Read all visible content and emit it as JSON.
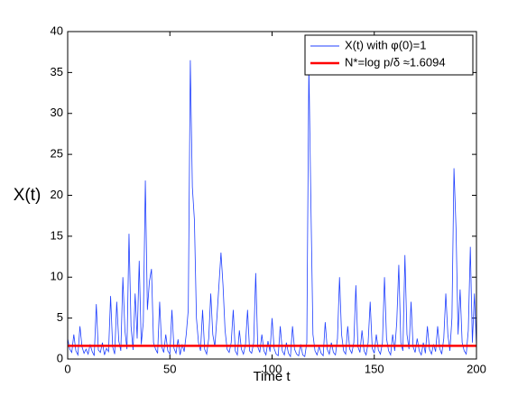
{
  "chart_data": {
    "type": "line",
    "xlabel": "Time t",
    "ylabel": "X(t)",
    "xlim": [
      0,
      200
    ],
    "xticks": [
      0,
      50,
      100,
      150,
      200
    ],
    "ylim": [
      0,
      40
    ],
    "yticks": [
      0,
      5,
      10,
      15,
      20,
      25,
      30,
      35,
      40
    ],
    "legend": "upper right",
    "x": [
      0,
      1,
      2,
      3,
      4,
      5,
      6,
      7,
      8,
      9,
      10,
      11,
      12,
      13,
      14,
      15,
      16,
      17,
      18,
      19,
      20,
      21,
      22,
      23,
      24,
      25,
      26,
      27,
      28,
      29,
      30,
      31,
      32,
      33,
      34,
      35,
      36,
      37,
      38,
      39,
      40,
      41,
      42,
      43,
      44,
      45,
      46,
      47,
      48,
      49,
      50,
      51,
      52,
      53,
      54,
      55,
      56,
      57,
      58,
      59,
      60,
      61,
      62,
      63,
      64,
      65,
      66,
      67,
      68,
      69,
      70,
      71,
      72,
      73,
      74,
      75,
      76,
      77,
      78,
      79,
      80,
      81,
      82,
      83,
      84,
      85,
      86,
      87,
      88,
      89,
      90,
      91,
      92,
      93,
      94,
      95,
      96,
      97,
      98,
      99,
      100,
      101,
      102,
      103,
      104,
      105,
      106,
      107,
      108,
      109,
      110,
      111,
      112,
      113,
      114,
      115,
      116,
      117,
      118,
      119,
      120,
      121,
      122,
      123,
      124,
      125,
      126,
      127,
      128,
      129,
      130,
      131,
      132,
      133,
      134,
      135,
      136,
      137,
      138,
      139,
      140,
      141,
      142,
      143,
      144,
      145,
      146,
      147,
      148,
      149,
      150,
      151,
      152,
      153,
      154,
      155,
      156,
      157,
      158,
      159,
      160,
      161,
      162,
      163,
      164,
      165,
      166,
      167,
      168,
      169,
      170,
      171,
      172,
      173,
      174,
      175,
      176,
      177,
      178,
      179,
      180,
      181,
      182,
      183,
      184,
      185,
      186,
      187,
      188,
      189,
      190,
      191,
      192,
      193,
      194,
      195,
      196,
      197,
      198,
      199,
      200
    ],
    "series": [
      {
        "name": "X(t) with φ(0)=1",
        "color": "#1f3fff",
        "values": [
          2.5,
          1.2,
          0.8,
          3.0,
          1.0,
          0.5,
          4.0,
          1.5,
          0.7,
          1.2,
          0.6,
          1.8,
          0.9,
          0.4,
          6.7,
          1.1,
          0.8,
          2.0,
          0.5,
          1.3,
          0.9,
          7.7,
          1.5,
          0.6,
          7.0,
          2.2,
          1.0,
          10.0,
          3.5,
          1.2,
          15.3,
          4.0,
          1.1,
          8.0,
          2.5,
          12.0,
          1.8,
          4.5,
          21.8,
          6.0,
          9.5,
          11.0,
          2.0,
          1.2,
          0.7,
          7.0,
          1.5,
          0.8,
          3.0,
          1.0,
          0.6,
          6.0,
          1.3,
          0.7,
          2.4,
          0.5,
          1.8,
          0.9,
          3.0,
          6.0,
          36.5,
          21.0,
          17.0,
          5.0,
          2.0,
          1.0,
          6.0,
          1.2,
          0.6,
          2.5,
          8.0,
          3.0,
          1.5,
          5.0,
          9.0,
          13.0,
          9.0,
          3.5,
          1.2,
          0.8,
          2.0,
          6.0,
          1.0,
          0.5,
          3.5,
          1.2,
          0.6,
          1.8,
          6.0,
          1.0,
          0.7,
          2.0,
          10.5,
          1.5,
          0.8,
          3.0,
          1.0,
          0.5,
          2.2,
          0.9,
          5.0,
          1.3,
          0.6,
          0.4,
          4.0,
          1.0,
          0.5,
          2.0,
          0.7,
          0.3,
          4.0,
          1.2,
          0.6,
          0.4,
          1.8,
          0.5,
          0.3,
          2.0,
          36.0,
          19.0,
          3.0,
          1.0,
          0.5,
          1.5,
          0.7,
          0.4,
          4.5,
          1.2,
          0.6,
          2.0,
          0.8,
          0.5,
          2.5,
          10.0,
          3.0,
          1.0,
          0.6,
          4.0,
          1.2,
          0.7,
          2.0,
          9.0,
          1.5,
          0.8,
          3.5,
          1.0,
          0.5,
          2.0,
          7.0,
          1.3,
          0.7,
          3.0,
          1.1,
          0.6,
          2.0,
          10.0,
          2.5,
          1.0,
          0.5,
          3.0,
          1.0,
          4.5,
          11.5,
          2.0,
          1.0,
          12.7,
          3.0,
          1.2,
          7.0,
          1.5,
          0.8,
          2.5,
          1.0,
          0.5,
          2.0,
          0.7,
          4.0,
          1.2,
          0.6,
          1.8,
          0.9,
          4.0,
          1.3,
          0.6,
          2.5,
          8.0,
          3.0,
          1.0,
          5.0,
          23.3,
          16.0,
          3.0,
          8.5,
          2.0,
          1.0,
          0.6,
          3.5,
          13.7,
          2.0,
          8.0,
          1.5
        ]
      }
    ],
    "hline": {
      "name": "N*=log p/δ ≈1.6094",
      "value": 1.6094,
      "color": "#ff0000"
    }
  }
}
